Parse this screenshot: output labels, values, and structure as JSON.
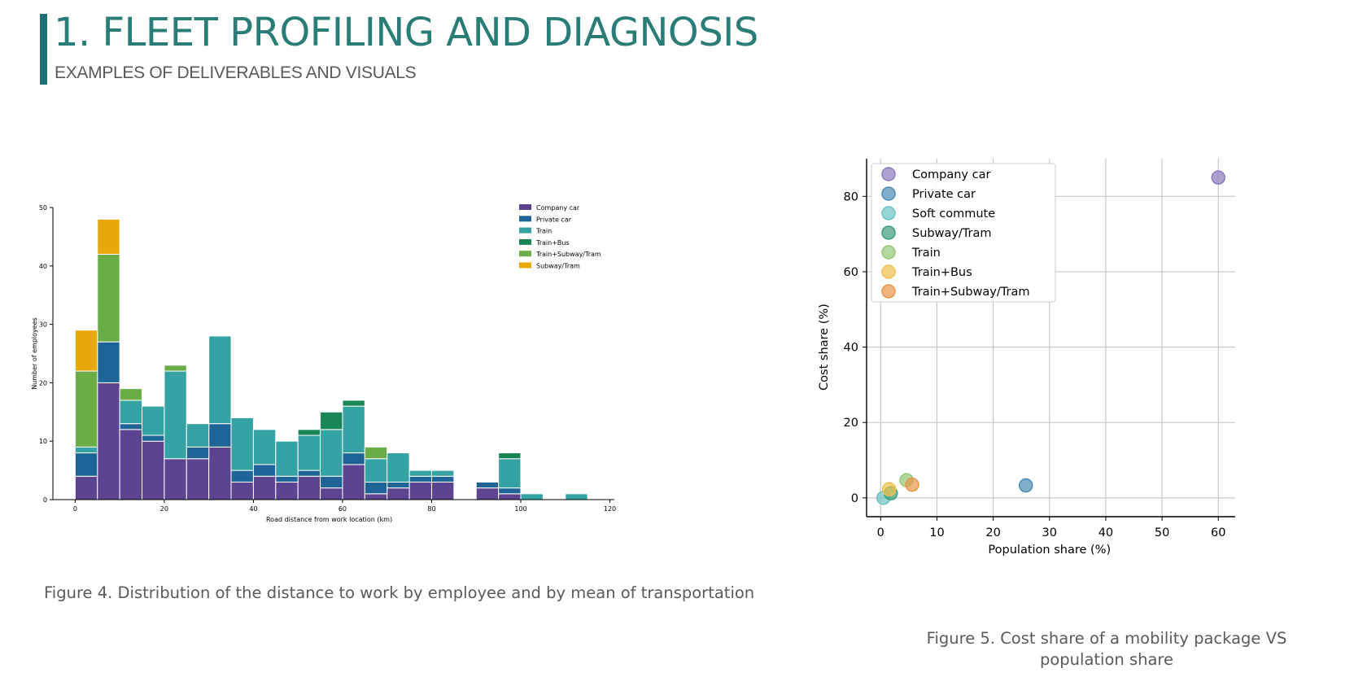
{
  "header": {
    "title": "1. FLEET PROFILING AND DIAGNOSIS",
    "subtitle": "EXAMPLES OF DELIVERABLES AND VISUALS",
    "accent_color": "#1f6f76",
    "title_color": "#2a7d77"
  },
  "figure4": {
    "caption": "Figure 4. Distribution of the distance to work by employee and by mean of transportation"
  },
  "figure5": {
    "caption": "Figure 5. Cost share of a mobility package VS population share"
  },
  "chart_data": [
    {
      "type": "bar",
      "stacked": true,
      "title": "",
      "xlabel": "Road distance from work location (km)",
      "ylabel": "Number of employees",
      "xlim": [
        -5,
        121
      ],
      "ylim": [
        0,
        50
      ],
      "xticks": [
        0,
        20,
        40,
        60,
        80,
        100,
        120
      ],
      "yticks": [
        0,
        10,
        20,
        30,
        40,
        50
      ],
      "bin_width": 5,
      "bin_starts": [
        0,
        5,
        10,
        15,
        20,
        25,
        30,
        35,
        40,
        45,
        50,
        55,
        60,
        65,
        70,
        75,
        80,
        85,
        90,
        95,
        100,
        105,
        110,
        115
      ],
      "legend_position": "top-right",
      "series": [
        {
          "name": "Company car",
          "color": "#5c4491",
          "values": [
            4,
            20,
            12,
            10,
            7,
            7,
            9,
            3,
            4,
            3,
            4,
            2,
            6,
            1,
            2,
            3,
            3,
            0,
            2,
            1,
            0,
            0,
            0,
            0
          ]
        },
        {
          "name": "Private car",
          "color": "#1f6496",
          "values": [
            4,
            7,
            1,
            1,
            0,
            2,
            4,
            2,
            2,
            1,
            1,
            2,
            2,
            2,
            1,
            1,
            1,
            0,
            1,
            1,
            0,
            0,
            0,
            0
          ]
        },
        {
          "name": "Train",
          "color": "#35a3a3",
          "values": [
            1,
            0,
            4,
            5,
            15,
            4,
            15,
            9,
            6,
            6,
            6,
            8,
            8,
            4,
            5,
            1,
            1,
            0,
            0,
            5,
            1,
            0,
            1,
            0
          ]
        },
        {
          "name": "Train+Bus",
          "color": "#178556",
          "values": [
            0,
            0,
            0,
            0,
            0,
            0,
            0,
            0,
            0,
            0,
            1,
            3,
            1,
            0,
            0,
            0,
            0,
            0,
            0,
            1,
            0,
            0,
            0,
            0
          ]
        },
        {
          "name": "Train+Subway/Tram",
          "color": "#6aac46",
          "values": [
            13,
            15,
            2,
            0,
            1,
            0,
            0,
            0,
            0,
            0,
            0,
            0,
            0,
            2,
            0,
            0,
            0,
            0,
            0,
            0,
            0,
            0,
            0,
            0
          ]
        },
        {
          "name": "Subway/Tram",
          "color": "#e8a808",
          "values": [
            7,
            6,
            0,
            0,
            0,
            0,
            0,
            0,
            0,
            0,
            0,
            0,
            0,
            0,
            0,
            0,
            0,
            0,
            0,
            0,
            0,
            0,
            0,
            0
          ]
        }
      ]
    },
    {
      "type": "scatter",
      "title": "",
      "xlabel": "Population share (%)",
      "ylabel": "Cost share (%)",
      "xlim": [
        -2.5,
        63
      ],
      "ylim": [
        -5,
        90
      ],
      "xticks": [
        0,
        10,
        20,
        30,
        40,
        50,
        60
      ],
      "yticks": [
        0,
        20,
        40,
        60,
        80
      ],
      "grid": true,
      "legend_position": "top-left",
      "series": [
        {
          "name": "Company car",
          "color": "#8b7bba",
          "x": [
            60
          ],
          "y": [
            85
          ]
        },
        {
          "name": "Private car",
          "color": "#4a8bb5",
          "x": [
            25.8
          ],
          "y": [
            3.3
          ]
        },
        {
          "name": "Soft commute",
          "color": "#6cc3c3",
          "x": [
            0.5
          ],
          "y": [
            0
          ]
        },
        {
          "name": "Subway/Tram",
          "color": "#3e9e79",
          "x": [
            1.8
          ],
          "y": [
            1.2
          ]
        },
        {
          "name": "Train",
          "color": "#92c775",
          "x": [
            4.6
          ],
          "y": [
            4.7
          ]
        },
        {
          "name": "Train+Bus",
          "color": "#f0c04a",
          "x": [
            1.5
          ],
          "y": [
            2.3
          ]
        },
        {
          "name": "Train+Subway/Tram",
          "color": "#e89549",
          "x": [
            5.6
          ],
          "y": [
            3.5
          ]
        }
      ]
    }
  ]
}
